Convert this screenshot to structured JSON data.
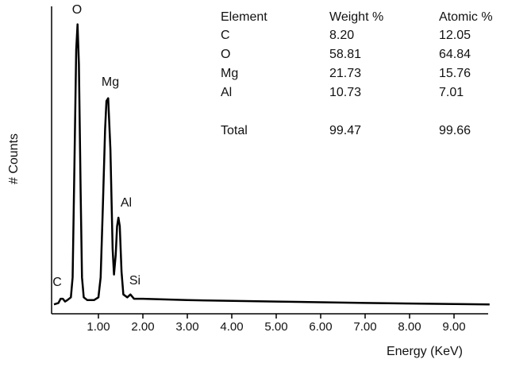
{
  "chart_data": {
    "type": "line",
    "x_label": "Energy (KeV)",
    "y_label": "# Counts",
    "color": "#000000",
    "x": [
      0.0,
      0.1,
      0.15,
      0.2,
      0.25,
      0.3,
      0.38,
      0.42,
      0.46,
      0.5,
      0.53,
      0.56,
      0.6,
      0.63,
      0.67,
      0.75,
      0.9,
      1.0,
      1.05,
      1.1,
      1.15,
      1.18,
      1.22,
      1.27,
      1.32,
      1.35,
      1.39,
      1.42,
      1.45,
      1.48,
      1.52,
      1.56,
      1.65,
      1.72,
      1.8,
      2.0,
      3.0,
      5.0,
      7.0,
      9.8
    ],
    "values": [
      0.5,
      1,
      2.5,
      2.5,
      1.5,
      2,
      3,
      10,
      50,
      90,
      99,
      85,
      40,
      10,
      3,
      2,
      2,
      3,
      10,
      35,
      62,
      72,
      73,
      55,
      20,
      11,
      18,
      28,
      31,
      28,
      12,
      4,
      3,
      4,
      2.5,
      2.5,
      2,
      1.5,
      1,
      0.5
    ],
    "xlim": [
      0,
      9.8
    ],
    "ylim": [
      0,
      100
    ],
    "xticks": [
      {
        "value": 1,
        "label": "1.00"
      },
      {
        "value": 2,
        "label": "2.00"
      },
      {
        "value": 3,
        "label": "3.00"
      },
      {
        "value": 4,
        "label": "4.00"
      },
      {
        "value": 5,
        "label": "5.00"
      },
      {
        "value": 6,
        "label": "6.00"
      },
      {
        "value": 7,
        "label": "7.00"
      },
      {
        "value": 8,
        "label": "8.00"
      },
      {
        "value": 9,
        "label": "9.00"
      }
    ],
    "annotations": [
      "C",
      "O",
      "Mg",
      "Al",
      "Si"
    ],
    "table": {
      "header": [
        "Element",
        "Weight %",
        "Atomic %"
      ],
      "rows": [
        [
          "C",
          "8.20",
          "12.05"
        ],
        [
          "O",
          "58.81",
          "64.84"
        ],
        [
          "Mg",
          "21.73",
          "15.76"
        ],
        [
          "Al",
          "10.73",
          "7.01"
        ],
        [
          "Total",
          "99.47",
          "99.66"
        ]
      ]
    }
  }
}
